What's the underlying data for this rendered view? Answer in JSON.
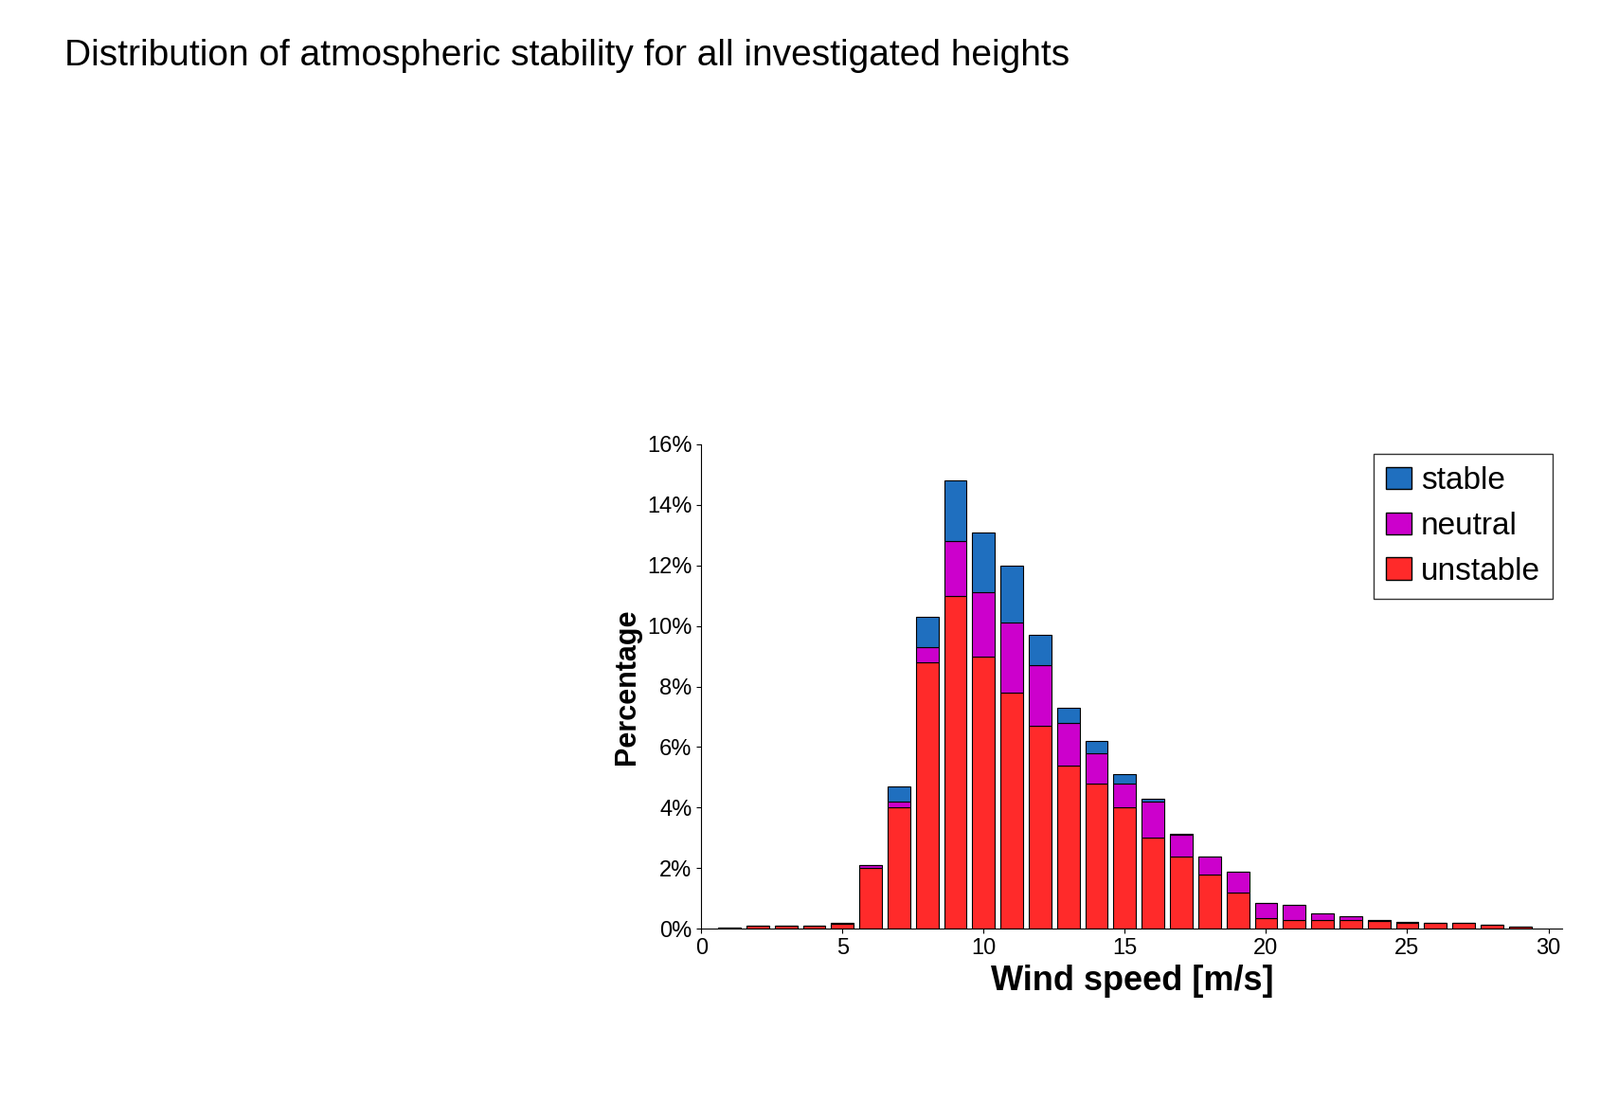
{
  "chart_data": {
    "type": "bar",
    "title": "Distribution of atmospheric stability for all investigated heights",
    "x_label": "Wind speed [m/s]",
    "y_label": "Percentage",
    "stacked": true,
    "legend": "upper right",
    "x": [
      1,
      2,
      3,
      4,
      5,
      6,
      7,
      8,
      9,
      10,
      11,
      12,
      13,
      14,
      15,
      16,
      17,
      18,
      19,
      20,
      21,
      22,
      23,
      24,
      25,
      26,
      27,
      28,
      29
    ],
    "series": [
      {
        "name": "unstable",
        "color": "#ff2a2a",
        "values": [
          0.05,
          0.1,
          0.1,
          0.1,
          0.15,
          2.0,
          4.0,
          8.8,
          11.0,
          9.0,
          7.8,
          6.7,
          5.4,
          4.8,
          4.0,
          3.0,
          2.4,
          1.8,
          1.2,
          0.35,
          0.3,
          0.3,
          0.3,
          0.25,
          0.2,
          0.2,
          0.18,
          0.12,
          0.08
        ]
      },
      {
        "name": "neutral",
        "color": "#cc00cc",
        "values": [
          0.0,
          0.0,
          0.0,
          0.0,
          0.05,
          0.1,
          0.2,
          0.5,
          1.8,
          2.1,
          2.3,
          2.0,
          1.4,
          1.0,
          0.8,
          1.2,
          0.7,
          0.6,
          0.7,
          0.5,
          0.5,
          0.2,
          0.1,
          0.05,
          0.02,
          0.0,
          0.0,
          0.0,
          0.0
        ]
      },
      {
        "name": "stable",
        "color": "#1f6fbf",
        "values": [
          0.0,
          0.0,
          0.0,
          0.0,
          0.0,
          0.0,
          0.5,
          1.0,
          2.0,
          2.0,
          1.9,
          1.0,
          0.5,
          0.4,
          0.3,
          0.1,
          0.05,
          0.0,
          0.0,
          0.0,
          0.0,
          0.0,
          0.0,
          0.0,
          0.0,
          0.0,
          0.0,
          0.0,
          0.0
        ]
      }
    ],
    "legend_order": [
      "stable",
      "neutral",
      "unstable"
    ],
    "xlim": [
      0,
      30.5
    ],
    "xticks": [
      0,
      5,
      10,
      15,
      20,
      25,
      30
    ],
    "ylim": [
      0,
      16
    ],
    "yticks": [
      {
        "value": 0,
        "label": "0%"
      },
      {
        "value": 2,
        "label": "2%"
      },
      {
        "value": 4,
        "label": "4%"
      },
      {
        "value": 6,
        "label": "6%"
      },
      {
        "value": 8,
        "label": "8%"
      },
      {
        "value": 10,
        "label": "10%"
      },
      {
        "value": 12,
        "label": "12%"
      },
      {
        "value": 14,
        "label": "14%"
      },
      {
        "value": 16,
        "label": "16%"
      }
    ],
    "grid": false
  }
}
